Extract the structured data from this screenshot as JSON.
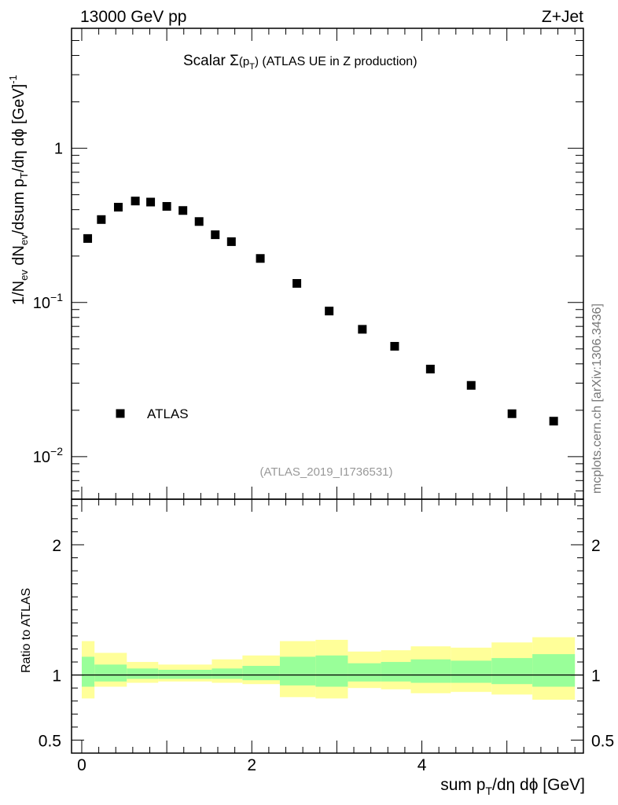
{
  "header": {
    "energy_label": "13000 GeV pp",
    "process_label": "Z+Jet"
  },
  "side_label": "mcplots.cern.ch [arXiv:1306.3436]",
  "colors": {
    "band_inner": "#99ff99",
    "band_outer": "#ffff99",
    "marker": "#000000",
    "analysis_text": "#999999"
  },
  "chart_data": [
    {
      "type": "scatter",
      "name": "main",
      "title": "Scalar Σ(p_T) (ATLAS UE in Z production)",
      "title_parts": {
        "lead": "Scalar ",
        "sigma": "Σ",
        "open": "(p",
        "sub": "T",
        "close": ")",
        "rest": " (ATLAS UE in Z production)"
      },
      "ylabel": "1/N_ev dN_ev/dsum p_T/dη dϕ [GeV]^-1",
      "ylabel_parts": {
        "a": "1/N",
        "a_sub": "ev",
        "b": " dN",
        "b_sub": "ev",
        "c": "/dsum p",
        "c_sub": "T",
        "d": "/dη dϕ  [GeV]",
        "d_sup": "-1"
      },
      "yscale": "log",
      "ylim": [
        0.0053,
        6.0
      ],
      "xlim": [
        -0.12,
        5.9
      ],
      "ytick_labels": [
        {
          "value": 1,
          "base": "1",
          "exp": ""
        },
        {
          "value": 0.1,
          "base": "10",
          "exp": "−1"
        },
        {
          "value": 0.01,
          "base": "10",
          "exp": "−2"
        }
      ],
      "legend": {
        "label": "ATLAS",
        "placement": "lower-left"
      },
      "analysis_id": "(ATLAS_2019_I1736531)",
      "series": [
        {
          "name": "ATLAS",
          "x": [
            0.07,
            0.23,
            0.43,
            0.63,
            0.81,
            1.0,
            1.19,
            1.38,
            1.57,
            1.76,
            2.1,
            2.53,
            2.91,
            3.3,
            3.68,
            4.1,
            4.58,
            5.06,
            5.55
          ],
          "y": [
            0.26,
            0.345,
            0.415,
            0.455,
            0.448,
            0.42,
            0.395,
            0.335,
            0.275,
            0.248,
            0.193,
            0.133,
            0.088,
            0.067,
            0.052,
            0.037,
            0.029,
            0.019,
            0.017
          ]
        }
      ]
    },
    {
      "type": "area",
      "name": "ratio",
      "ylabel": "Ratio to ATLAS",
      "xlabel": "sum p_T/dη dϕ [GeV]",
      "xlabel_parts": {
        "a": "sum p",
        "a_sub": "T",
        "b": "/dη dϕ [GeV]"
      },
      "xlim": [
        -0.12,
        5.9
      ],
      "ylim": [
        0.4,
        2.35
      ],
      "xtick_labels": [
        {
          "value": 0,
          "label": "0"
        },
        {
          "value": 2,
          "label": "2"
        },
        {
          "value": 4,
          "label": "4"
        }
      ],
      "ytick_labels": [
        {
          "value": 2,
          "label": "2"
        },
        {
          "value": 1,
          "label": "1"
        },
        {
          "value": 0.5,
          "label": "0.5"
        }
      ],
      "reference_line": 1.0,
      "bins": [
        {
          "x0": 0.0,
          "x1": 0.15,
          "outer": [
            0.82,
            1.26
          ],
          "inner": [
            0.91,
            1.14
          ]
        },
        {
          "x0": 0.15,
          "x1": 0.53,
          "outer": [
            0.91,
            1.17
          ],
          "inner": [
            0.95,
            1.08
          ]
        },
        {
          "x0": 0.53,
          "x1": 0.9,
          "outer": [
            0.94,
            1.1
          ],
          "inner": [
            0.97,
            1.05
          ]
        },
        {
          "x0": 0.9,
          "x1": 1.53,
          "outer": [
            0.95,
            1.08
          ],
          "inner": [
            0.97,
            1.04
          ]
        },
        {
          "x0": 1.53,
          "x1": 1.89,
          "outer": [
            0.94,
            1.12
          ],
          "inner": [
            0.97,
            1.05
          ]
        },
        {
          "x0": 1.89,
          "x1": 2.33,
          "outer": [
            0.93,
            1.15
          ],
          "inner": [
            0.96,
            1.07
          ]
        },
        {
          "x0": 2.33,
          "x1": 2.75,
          "outer": [
            0.83,
            1.26
          ],
          "inner": [
            0.92,
            1.14
          ]
        },
        {
          "x0": 2.75,
          "x1": 3.13,
          "outer": [
            0.82,
            1.27
          ],
          "inner": [
            0.91,
            1.15
          ]
        },
        {
          "x0": 3.13,
          "x1": 3.52,
          "outer": [
            0.9,
            1.18
          ],
          "inner": [
            0.95,
            1.09
          ]
        },
        {
          "x0": 3.52,
          "x1": 3.87,
          "outer": [
            0.89,
            1.19
          ],
          "inner": [
            0.95,
            1.1
          ]
        },
        {
          "x0": 3.87,
          "x1": 4.34,
          "outer": [
            0.86,
            1.22
          ],
          "inner": [
            0.94,
            1.12
          ]
        },
        {
          "x0": 4.34,
          "x1": 4.82,
          "outer": [
            0.87,
            1.21
          ],
          "inner": [
            0.94,
            1.11
          ]
        },
        {
          "x0": 4.82,
          "x1": 5.3,
          "outer": [
            0.85,
            1.25
          ],
          "inner": [
            0.93,
            1.13
          ]
        },
        {
          "x0": 5.3,
          "x1": 5.8,
          "outer": [
            0.81,
            1.29
          ],
          "inner": [
            0.91,
            1.16
          ]
        }
      ]
    }
  ]
}
